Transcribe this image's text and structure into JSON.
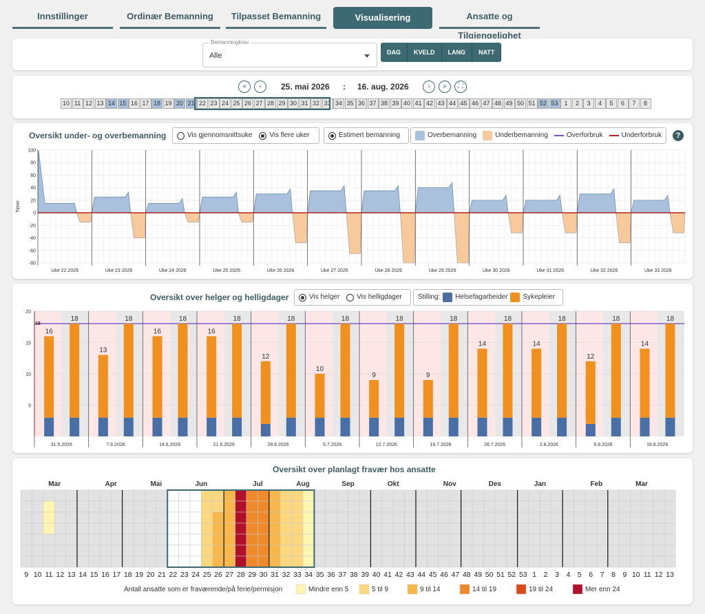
{
  "tabs": [
    "Innstillinger",
    "Ordinær Bemanning",
    "Tilpasset Bemanning",
    "Visualisering",
    "Ansatte og Tilgjengelighet"
  ],
  "filter": {
    "label": "Bemanningkrav",
    "value": "Alle",
    "shifts": [
      "DAG",
      "KVELD",
      "LANG",
      "NATT"
    ]
  },
  "nav": {
    "start": "25. mai 2026",
    "sep": ":",
    "end": "16. aug. 2026",
    "first": "«",
    "prev": "‹",
    "next": "›",
    "last": "»",
    "fs": "⛶"
  },
  "weeks": [
    "10",
    "11",
    "12",
    "13",
    "14",
    "15",
    "16",
    "17",
    "18",
    "19",
    "20",
    "21",
    "22",
    "23",
    "24",
    "25",
    "26",
    "27",
    "28",
    "29",
    "30",
    "31",
    "32",
    "33",
    "34",
    "35",
    "36",
    "37",
    "38",
    "39",
    "40",
    "41",
    "42",
    "43",
    "44",
    "45",
    "46",
    "47",
    "48",
    "49",
    "50",
    "51",
    "52",
    "53",
    "1",
    "2",
    "3",
    "4",
    "5",
    "6",
    "7",
    "8"
  ],
  "highlight_weeks": [
    "14",
    "15",
    "18",
    "20",
    "21",
    "52",
    "53"
  ],
  "selected_weeks": [
    "22",
    "23",
    "24",
    "25",
    "26",
    "27",
    "28",
    "29",
    "30",
    "31",
    "32",
    "33"
  ],
  "overview": {
    "title": "Oversikt under- og overbemanning",
    "opt1": "Vis gjennomsnittsuke",
    "opt2": "Vis flere uker",
    "est": "Estimert bemanning",
    "leg_over": "Overbemanning",
    "leg_under": "Underbemanning",
    "leg_overforbruk": "Overforbruk",
    "leg_underforbruk": "Underforbruk",
    "help": "?",
    "ylabel": "Timer",
    "colors": {
      "over": "#a9c1dd",
      "under": "#f8c99a",
      "overforbruk": "#7b52c8",
      "underforbruk": "#b01f1f"
    }
  },
  "chart_data": [
    {
      "type": "area",
      "ylabel": "Timer",
      "ylim": [
        -80,
        100
      ],
      "yticks": [
        100,
        80,
        60,
        40,
        20,
        0,
        -20,
        -40,
        -60,
        -80
      ],
      "categories": [
        "Uke 22 2026",
        "Uke 23 2026",
        "Uke 24 2026",
        "Uke 25 2026",
        "Uke 26 2026",
        "Uke 27 2026",
        "Uke 28 2026",
        "Uke 29 2026",
        "Uke 30 2026",
        "Uke 31 2026",
        "Uke 32 2026",
        "Uke 33 2026"
      ],
      "series": [
        {
          "name": "Overbemanning",
          "values": [
            15,
            25,
            15,
            25,
            30,
            35,
            35,
            40,
            20,
            20,
            30,
            20
          ]
        },
        {
          "name": "Underbemanning",
          "values": [
            -15,
            -40,
            -15,
            -15,
            -48,
            -65,
            -80,
            -80,
            -32,
            -32,
            -48,
            -32
          ]
        }
      ]
    },
    {
      "type": "bar",
      "title": "Oversikt over helger og helligdager",
      "categories": [
        "31.5.2026",
        "7.6.2026",
        "14.6.2026",
        "21.6.2026",
        "28.6.2026",
        "5.7.2026",
        "12.7.2026",
        "19.7.2026",
        "26.7.2026",
        "2.8.2026",
        "9.8.2026",
        "16.8.2026"
      ],
      "ylim": [
        0,
        20
      ],
      "yticks": [
        20,
        15,
        10,
        5
      ],
      "target": 18,
      "series": [
        {
          "name": "Helsefagarbeider",
          "saturday": [
            3,
            3,
            3,
            3,
            2,
            3,
            3,
            3,
            3,
            3,
            2,
            3
          ],
          "sunday": [
            3,
            3,
            3,
            3,
            3,
            3,
            3,
            3,
            3,
            3,
            3,
            3
          ]
        },
        {
          "name": "Sykepleier",
          "saturday": [
            13,
            10,
            13,
            13,
            10,
            7,
            6,
            6,
            11,
            11,
            10,
            11
          ],
          "sunday": [
            15,
            15,
            15,
            15,
            15,
            15,
            15,
            15,
            15,
            15,
            15,
            15
          ]
        }
      ],
      "totals": {
        "saturday": [
          16,
          13,
          16,
          16,
          12,
          10,
          9,
          9,
          14,
          14,
          12,
          14
        ],
        "sunday": [
          18,
          18,
          18,
          18,
          18,
          18,
          18,
          18,
          18,
          18,
          18,
          18
        ]
      }
    },
    {
      "type": "heatmap",
      "title": "Oversikt over planlagt fravær hos ansatte",
      "months": [
        "Mar",
        "Apr",
        "Mai",
        "Jun",
        "Jul",
        "Aug",
        "Sep",
        "Okt",
        "Nov",
        "Des",
        "Jan",
        "Feb",
        "Mar"
      ],
      "weeks": [
        "9",
        "10",
        "11",
        "12",
        "13",
        "14",
        "15",
        "16",
        "17",
        "18",
        "19",
        "20",
        "21",
        "22",
        "23",
        "24",
        "25",
        "26",
        "27",
        "28",
        "29",
        "30",
        "31",
        "32",
        "33",
        "34",
        "35",
        "36",
        "37",
        "38",
        "39",
        "40",
        "41",
        "42",
        "43",
        "44",
        "45",
        "46",
        "47",
        "48",
        "49",
        "50",
        "51",
        "52",
        "53",
        "1",
        "2",
        "3",
        "4",
        "5",
        "6",
        "7",
        "8",
        "9",
        "10",
        "11",
        "12",
        "13"
      ],
      "legend_label": "Antall ansatte som er fraværende/på ferie/permisjon",
      "legend": [
        "Mindre enn 5",
        "5 til 9",
        "9 til 14",
        "14 til 19",
        "19 til 24",
        "Mer enn 24"
      ]
    }
  ],
  "weekend": {
    "title": "Oversikt over helger og helligdager",
    "opt1": "Vis helger",
    "opt2": "Vis helligdager",
    "stilling": "Stilling:",
    "leg1": "Helsefagarbeider",
    "leg2": "Sykepleier",
    "colors": {
      "hfa": "#4a6fa5",
      "spl": "#f0901e"
    }
  },
  "absence": {
    "title": "Oversikt over planlagt fravær hos ansatte",
    "legend_label": "Antall ansatte som er fraværende/på ferie/permisjon",
    "legend": [
      {
        "label": "Mindre enn 5",
        "color": "#fdf5b0"
      },
      {
        "label": "5 til 9",
        "color": "#fbd880"
      },
      {
        "label": "9 til 14",
        "color": "#f7b74a"
      },
      {
        "label": "14 til 19",
        "color": "#ef8a2c"
      },
      {
        "label": "19 til 24",
        "color": "#dc4a1c"
      },
      {
        "label": "Mer enn 24",
        "color": "#b0102a"
      }
    ]
  }
}
